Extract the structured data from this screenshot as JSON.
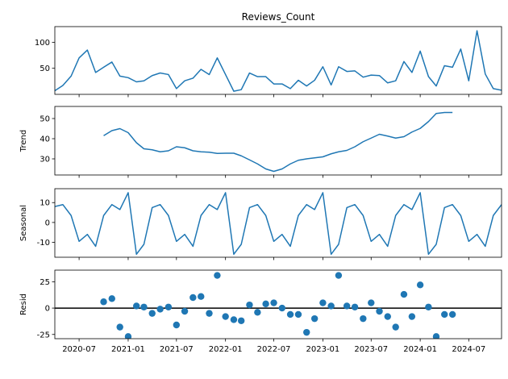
{
  "chart_data": [
    {
      "type": "line",
      "title": "Reviews_Count",
      "xlabel": "",
      "ylabel": "",
      "xlim": [
        "2020-04-01",
        "2024-11-01"
      ],
      "ylim": [
        0,
        130
      ],
      "yticks": [
        50,
        100
      ],
      "x": [
        "2020-04",
        "2020-05",
        "2020-06",
        "2020-07",
        "2020-08",
        "2020-09",
        "2020-10",
        "2020-11",
        "2020-12",
        "2021-01",
        "2021-02",
        "2021-03",
        "2021-04",
        "2021-05",
        "2021-06",
        "2021-07",
        "2021-08",
        "2021-09",
        "2021-10",
        "2021-11",
        "2021-12",
        "2022-01",
        "2022-02",
        "2022-03",
        "2022-04",
        "2022-05",
        "2022-06",
        "2022-07",
        "2022-08",
        "2022-09",
        "2022-10",
        "2022-11",
        "2022-12",
        "2023-01",
        "2023-02",
        "2023-03",
        "2023-04",
        "2023-05",
        "2023-06",
        "2023-07",
        "2023-08",
        "2023-09",
        "2023-10",
        "2023-11",
        "2023-12",
        "2024-01",
        "2024-02",
        "2024-03",
        "2024-04",
        "2024-05",
        "2024-06",
        "2024-07",
        "2024-08",
        "2024-09",
        "2024-10",
        "2024-11"
      ],
      "series": [
        {
          "values": [
            7,
            17,
            35,
            70,
            85,
            42,
            52,
            62,
            35,
            32,
            24,
            26,
            36,
            41,
            38,
            11,
            26,
            31,
            48,
            38,
            70,
            38,
            6,
            9,
            41,
            34,
            34,
            20,
            20,
            11,
            27,
            16,
            27,
            53,
            18,
            53,
            44,
            45,
            33,
            37,
            36,
            22,
            26,
            63,
            42,
            83,
            34,
            16,
            55,
            52,
            87,
            26,
            122,
            39,
            11,
            8
          ]
        }
      ],
      "colors": {
        "line": "#1f77b4"
      }
    },
    {
      "type": "line",
      "title": "",
      "xlabel": "",
      "ylabel": "Trend",
      "xlim": [
        "2020-04-01",
        "2024-11-01"
      ],
      "ylim": [
        22,
        56
      ],
      "yticks": [
        30,
        40,
        50
      ],
      "x": [
        "2020-10",
        "2020-11",
        "2020-12",
        "2021-01",
        "2021-02",
        "2021-03",
        "2021-04",
        "2021-05",
        "2021-06",
        "2021-07",
        "2021-08",
        "2021-09",
        "2021-10",
        "2021-11",
        "2021-12",
        "2022-01",
        "2022-02",
        "2022-03",
        "2022-04",
        "2022-05",
        "2022-06",
        "2022-07",
        "2022-08",
        "2022-09",
        "2022-10",
        "2022-11",
        "2022-12",
        "2023-01",
        "2023-02",
        "2023-03",
        "2023-04",
        "2023-05",
        "2023-06",
        "2023-07",
        "2023-08",
        "2023-09",
        "2023-10",
        "2023-11",
        "2023-12",
        "2024-01",
        "2024-02",
        "2024-03",
        "2024-04",
        "2024-05"
      ],
      "series": [
        {
          "values": [
            41.5,
            44,
            45,
            43,
            38,
            35,
            34.5,
            33.5,
            34,
            36,
            35.5,
            34,
            33.5,
            33.3,
            32.7,
            32.8,
            32.8,
            31.5,
            29.5,
            27.5,
            25,
            23.8,
            25,
            27.5,
            29.3,
            30,
            30.5,
            31,
            32.5,
            33.5,
            34.2,
            36,
            38.5,
            40.3,
            42.2,
            41.3,
            40.3,
            41,
            43.3,
            45.1,
            48.5,
            52.5,
            53,
            53
          ]
        }
      ],
      "colors": {
        "line": "#1f77b4"
      }
    },
    {
      "type": "line",
      "title": "",
      "xlabel": "",
      "ylabel": "Seasonal",
      "xlim": [
        "2020-04-01",
        "2024-11-01"
      ],
      "ylim": [
        -17.5,
        17
      ],
      "yticks": [
        -10,
        0,
        10
      ],
      "x": [
        "2020-04",
        "2020-05",
        "2020-06",
        "2020-07",
        "2020-08",
        "2020-09",
        "2020-10",
        "2020-11",
        "2020-12",
        "2021-01",
        "2021-02",
        "2021-03",
        "2021-04",
        "2021-05",
        "2021-06",
        "2021-07",
        "2021-08",
        "2021-09",
        "2021-10",
        "2021-11",
        "2021-12",
        "2022-01",
        "2022-02",
        "2022-03",
        "2022-04",
        "2022-05",
        "2022-06",
        "2022-07",
        "2022-08",
        "2022-09",
        "2022-10",
        "2022-11",
        "2022-12",
        "2023-01",
        "2023-02",
        "2023-03",
        "2023-04",
        "2023-05",
        "2023-06",
        "2023-07",
        "2023-08",
        "2023-09",
        "2023-10",
        "2023-11",
        "2023-12",
        "2024-01",
        "2024-02",
        "2024-03",
        "2024-04",
        "2024-05",
        "2024-06",
        "2024-07",
        "2024-08",
        "2024-09",
        "2024-10",
        "2024-11"
      ],
      "series": [
        {
          "values": [
            8,
            9,
            3.5,
            -9.5,
            -6,
            -12,
            3.5,
            9,
            6.5,
            15,
            -16,
            -11,
            7.5,
            9,
            3.5,
            -9.5,
            -6,
            -12,
            3.5,
            9,
            6.5,
            15,
            -16,
            -11,
            7.5,
            9,
            3.5,
            -9.5,
            -6,
            -12,
            3.5,
            9,
            6.5,
            15,
            -16,
            -11,
            7.5,
            9,
            3.5,
            -9.5,
            -6,
            -12,
            3.5,
            9,
            6.5,
            15,
            -16,
            -11,
            7.5,
            9,
            3.5,
            -9.5,
            -6,
            -12,
            3.5,
            9
          ]
        }
      ],
      "colors": {
        "line": "#1f77b4"
      }
    },
    {
      "type": "scatter",
      "title": "",
      "xlabel": "",
      "ylabel": "Resid",
      "xlim": [
        "2020-04-01",
        "2024-11-01"
      ],
      "ylim": [
        -29,
        36
      ],
      "yticks": [
        -25,
        0,
        25
      ],
      "zero_line": true,
      "x": [
        "2020-10",
        "2020-11",
        "2020-12",
        "2021-01",
        "2021-02",
        "2021-03",
        "2021-04",
        "2021-05",
        "2021-06",
        "2021-07",
        "2021-08",
        "2021-09",
        "2021-10",
        "2021-11",
        "2021-12",
        "2022-01",
        "2022-02",
        "2022-03",
        "2022-04",
        "2022-05",
        "2022-06",
        "2022-07",
        "2022-08",
        "2022-09",
        "2022-10",
        "2022-11",
        "2022-12",
        "2023-01",
        "2023-02",
        "2023-03",
        "2023-04",
        "2023-05",
        "2023-06",
        "2023-07",
        "2023-08",
        "2023-09",
        "2023-10",
        "2023-11",
        "2023-12",
        "2024-01",
        "2024-02",
        "2024-03",
        "2024-04",
        "2024-05"
      ],
      "values": [
        6,
        9,
        -18,
        -27,
        2,
        1,
        -5,
        -1,
        1,
        -16,
        -3,
        10,
        11,
        -5,
        31,
        -8,
        -11,
        -12,
        3,
        -4,
        4,
        5,
        0,
        -6,
        -6,
        -23,
        -10,
        5,
        2,
        31,
        2,
        1,
        -10,
        5,
        -3,
        -8,
        -18,
        13,
        -8,
        22,
        1,
        -27,
        -6,
        -6
      ],
      "colors": {
        "marker": "#1f77b4",
        "zero_line": "#000000"
      }
    }
  ],
  "x_ticks": [
    {
      "date": "2020-07-01",
      "label": "2020-07"
    },
    {
      "date": "2021-01-01",
      "label": "2021-01"
    },
    {
      "date": "2021-07-01",
      "label": "2021-07"
    },
    {
      "date": "2022-01-01",
      "label": "2022-01"
    },
    {
      "date": "2022-07-01",
      "label": "2022-07"
    },
    {
      "date": "2023-01-01",
      "label": "2023-01"
    },
    {
      "date": "2023-07-01",
      "label": "2023-07"
    },
    {
      "date": "2024-01-01",
      "label": "2024-01"
    },
    {
      "date": "2024-07-01",
      "label": "2024-07"
    }
  ]
}
